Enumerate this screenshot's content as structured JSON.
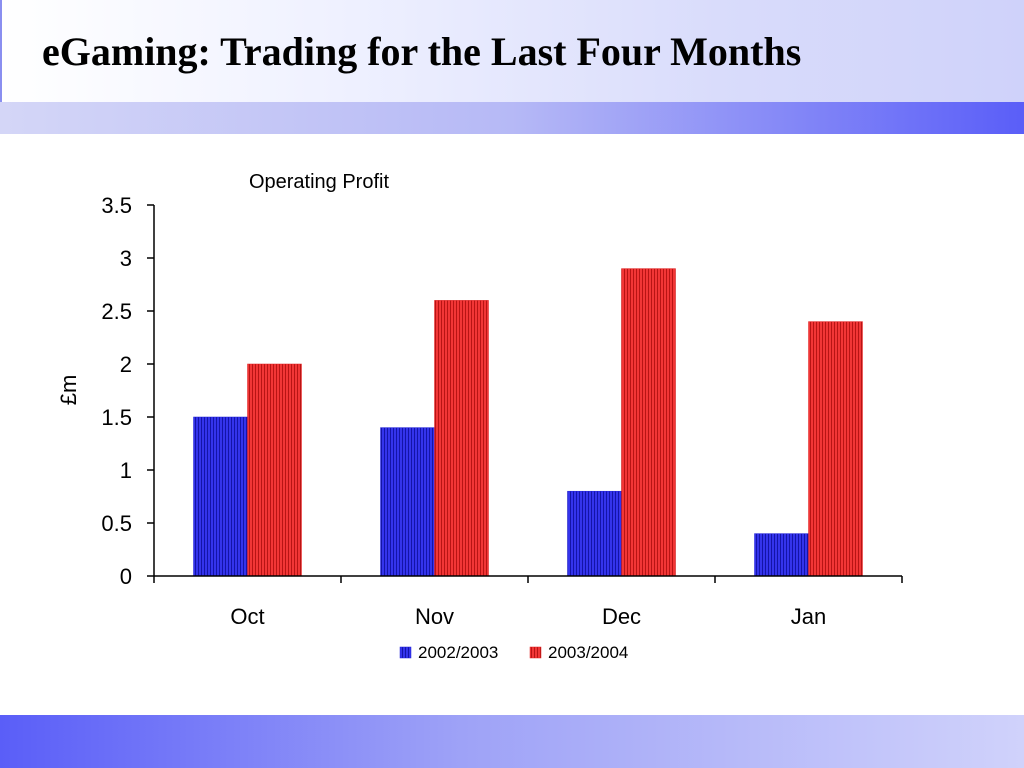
{
  "slide": {
    "title": "eGaming: Trading for the Last Four Months",
    "colors": {
      "header_gradient": [
        "#ffffff",
        "#cfd2fa"
      ],
      "band_accent": "#5a5ef8"
    }
  },
  "chart_data": {
    "type": "bar",
    "title": "Operating Profit",
    "xlabel": "",
    "ylabel": "£m",
    "categories": [
      "Oct",
      "Nov",
      "Dec",
      "Jan"
    ],
    "series": [
      {
        "name": "2002/2003",
        "values": [
          1.5,
          1.4,
          0.8,
          0.4
        ],
        "color": "#2020d8"
      },
      {
        "name": "2003/2004",
        "values": [
          2.0,
          2.6,
          2.9,
          2.4
        ],
        "color": "#e02020"
      }
    ],
    "ylim": [
      0,
      3.5
    ],
    "yticks": [
      "0",
      "0.5",
      "1",
      "1.5",
      "2",
      "2.5",
      "3",
      "3.5"
    ],
    "grid": false,
    "legend_position": "bottom"
  }
}
